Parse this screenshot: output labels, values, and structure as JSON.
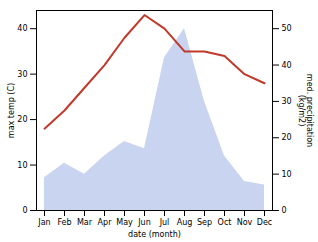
{
  "chart_data": {
    "type": "line",
    "xlabel": "date (month)",
    "ylabel": "max temp (C)",
    "y2label": "med. precipitation\n(kg/m2)",
    "categories": [
      "Jan",
      "Feb",
      "Mar",
      "Apr",
      "May",
      "Jun",
      "Jul",
      "Aug",
      "Sep",
      "Oct",
      "Nov",
      "Dec"
    ],
    "series": [
      {
        "type": "area",
        "axis": "y2",
        "color": "#c8d4f0",
        "values": [
          9,
          13,
          10,
          15,
          19,
          17,
          42,
          50,
          30,
          15,
          8,
          7
        ]
      },
      {
        "type": "line",
        "color": "#c0392b",
        "values": [
          18,
          22,
          27,
          32,
          38,
          43,
          40,
          35,
          35,
          34,
          30,
          28
        ]
      }
    ],
    "ylim": [
      0,
      44
    ],
    "yticks": [
      0,
      10,
      20,
      30,
      40
    ],
    "y2lim": [
      0,
      55
    ],
    "y2ticks": [
      0,
      10,
      20,
      30,
      40,
      50
    ]
  }
}
